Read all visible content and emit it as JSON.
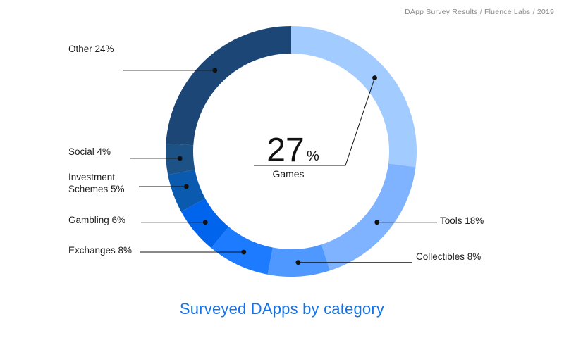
{
  "source": "DApp Survey Results / Fluence Labs / 2019",
  "chart_data": {
    "type": "pie",
    "subtype": "donut",
    "title": "Surveyed DApps by category",
    "unit": "%",
    "slices": [
      {
        "name": "Games",
        "value": 27,
        "color": "#a2cbff",
        "labels": [
          "Games"
        ]
      },
      {
        "name": "Tools",
        "value": 18,
        "color": "#80b3ff",
        "labels": [
          "Tools 18%"
        ]
      },
      {
        "name": "Collectibles",
        "value": 8,
        "color": "#4f98ff",
        "labels": [
          "Collectibles 8%"
        ]
      },
      {
        "name": "Exchanges",
        "value": 8,
        "color": "#1c7bff",
        "labels": [
          "Exchanges 8%"
        ]
      },
      {
        "name": "Gambling",
        "value": 6,
        "color": "#0064ec",
        "labels": [
          "Gambling 6%"
        ]
      },
      {
        "name": "Investment Schemes",
        "value": 5,
        "color": "#0a5ab0",
        "labels": [
          "Investment",
          "Schemes 5%"
        ]
      },
      {
        "name": "Social",
        "value": 4,
        "color": "#1d5287",
        "labels": [
          "Social 4%"
        ]
      },
      {
        "name": "Other",
        "value": 24,
        "color": "#1c4675",
        "labels": [
          "Other 24%"
        ]
      }
    ],
    "center": {
      "value": "27",
      "unit": "%",
      "label": "Games"
    }
  }
}
